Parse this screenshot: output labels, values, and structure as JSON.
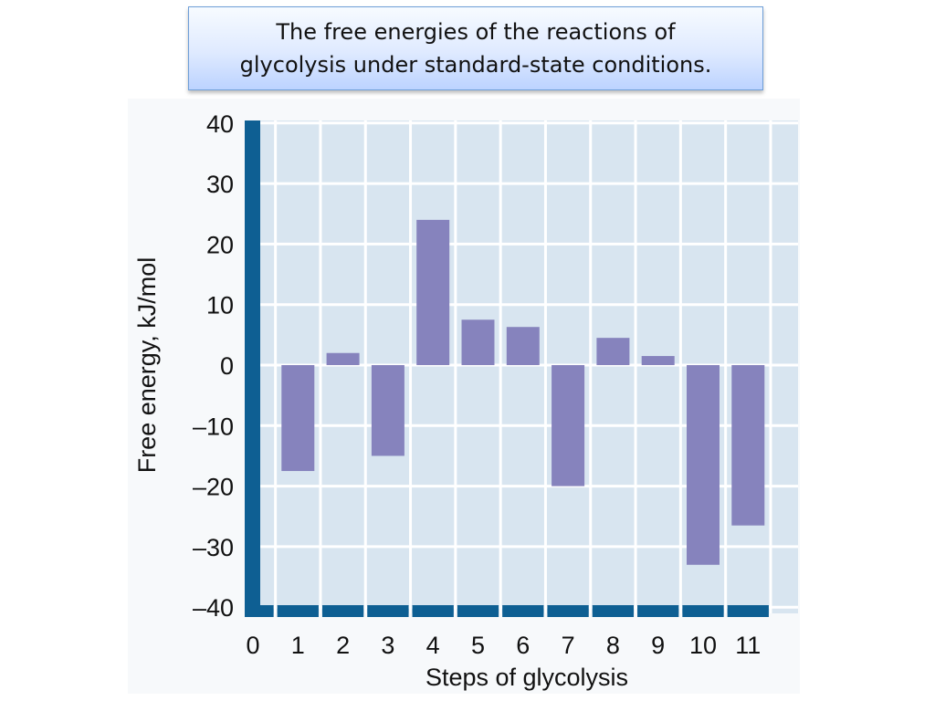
{
  "title": "The free energies of the reactions of glycolysis under standard-state conditions.",
  "chart_data": {
    "type": "bar",
    "categories": [
      "1",
      "2",
      "3",
      "4",
      "5",
      "6",
      "7",
      "8",
      "9",
      "10",
      "11"
    ],
    "x_ticks": [
      "0",
      "1",
      "2",
      "3",
      "4",
      "5",
      "6",
      "7",
      "8",
      "9",
      "10",
      "11"
    ],
    "values": [
      -17.5,
      2,
      -15,
      24,
      7.5,
      6.3,
      -20,
      4.5,
      1.5,
      -33,
      -26.5
    ],
    "y_ticks": [
      40,
      30,
      20,
      10,
      0,
      -10,
      -20,
      -30,
      -40
    ],
    "y_tick_labels": [
      "40",
      "30",
      "20",
      "10",
      "0",
      "–10",
      "–20",
      "–30",
      "–40"
    ],
    "title": "The free energies of the reactions of glycolysis under standard-state conditions.",
    "xlabel": "Steps of glycolysis",
    "ylabel": "Free energy, kJ/mol",
    "xlim": [
      0,
      11
    ],
    "ylim": [
      -40,
      40
    ],
    "grid": true,
    "colors": {
      "bar": "#8683bd",
      "plot_background": "#d8e5f0",
      "grid": "#ffffff",
      "axis": "#0e5f93"
    }
  }
}
